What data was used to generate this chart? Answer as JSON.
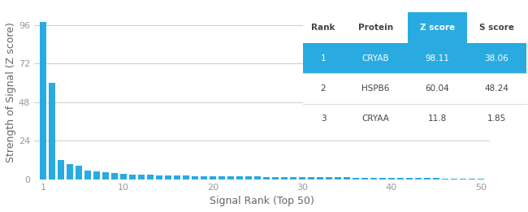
{
  "xlabel": "Signal Rank (Top 50)",
  "ylabel": "Strength of Signal (Z score)",
  "xlim": [
    0,
    51
  ],
  "ylim": [
    0,
    108
  ],
  "yticks": [
    0,
    24,
    48,
    72,
    96
  ],
  "xticks": [
    1,
    10,
    20,
    30,
    40,
    50
  ],
  "bar_color": "#29ABE2",
  "bar_values": [
    98.11,
    60.04,
    11.8,
    9.5,
    8.2,
    5.5,
    4.8,
    4.2,
    3.9,
    3.5,
    3.1,
    2.9,
    2.7,
    2.5,
    2.3,
    2.2,
    2.1,
    2.0,
    1.9,
    1.85,
    1.8,
    1.75,
    1.7,
    1.65,
    1.6,
    1.55,
    1.5,
    1.45,
    1.4,
    1.35,
    1.3,
    1.25,
    1.2,
    1.15,
    1.1,
    1.05,
    1.0,
    0.95,
    0.9,
    0.85,
    0.8,
    0.75,
    0.7,
    0.65,
    0.6,
    0.55,
    0.5,
    0.45,
    0.4,
    0.35
  ],
  "table_data": [
    [
      "Rank",
      "Protein",
      "Z score",
      "S score"
    ],
    [
      "1",
      "CRYAB",
      "98.11",
      "38.06"
    ],
    [
      "2",
      "HSPB6",
      "60.04",
      "48.24"
    ],
    [
      "3",
      "CRYAA",
      "11.8",
      "1.85"
    ]
  ],
  "blue_color": "#29ABE2",
  "table_text_dark": "#444444",
  "table_text_white": "#ffffff",
  "bg_color": "#ffffff",
  "grid_color": "#cccccc",
  "axis_label_color": "#666666",
  "tick_color": "#999999"
}
